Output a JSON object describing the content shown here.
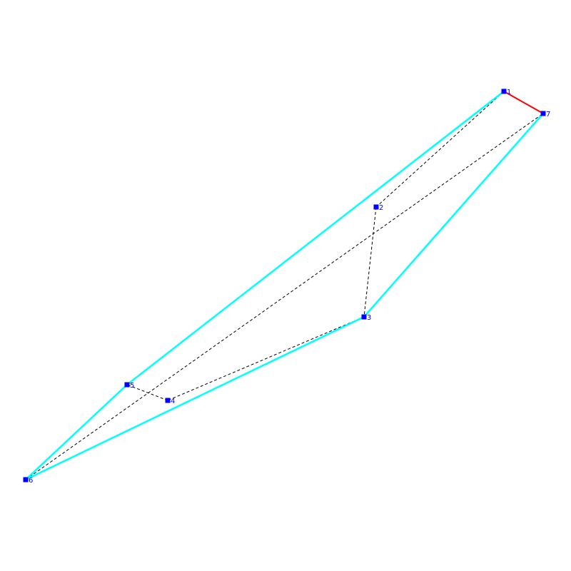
{
  "colors": {
    "background": "#ffffff",
    "node": "#0000ff",
    "label": "#0000ff",
    "hull_edge": "#00ffff",
    "highlight_edge": "#ff0000",
    "dashed_edge": "#000000"
  },
  "nodes": [
    {
      "id": "1",
      "label": "1"
    },
    {
      "id": "2",
      "label": "2"
    },
    {
      "id": "3",
      "label": "3"
    },
    {
      "id": "4",
      "label": "4"
    },
    {
      "id": "5",
      "label": "5"
    },
    {
      "id": "6",
      "label": "6"
    },
    {
      "id": "7",
      "label": "7"
    }
  ],
  "edges": [
    {
      "from": "1",
      "to": "7",
      "style": "highlight"
    },
    {
      "from": "1",
      "to": "5",
      "style": "hull"
    },
    {
      "from": "5",
      "to": "6",
      "style": "hull"
    },
    {
      "from": "6",
      "to": "3",
      "style": "hull"
    },
    {
      "from": "3",
      "to": "7",
      "style": "hull"
    },
    {
      "from": "1",
      "to": "2",
      "style": "dashed"
    },
    {
      "from": "2",
      "to": "3",
      "style": "dashed"
    },
    {
      "from": "3",
      "to": "4",
      "style": "dashed"
    },
    {
      "from": "4",
      "to": "5",
      "style": "dashed"
    },
    {
      "from": "6",
      "to": "7",
      "style": "dashed"
    }
  ]
}
